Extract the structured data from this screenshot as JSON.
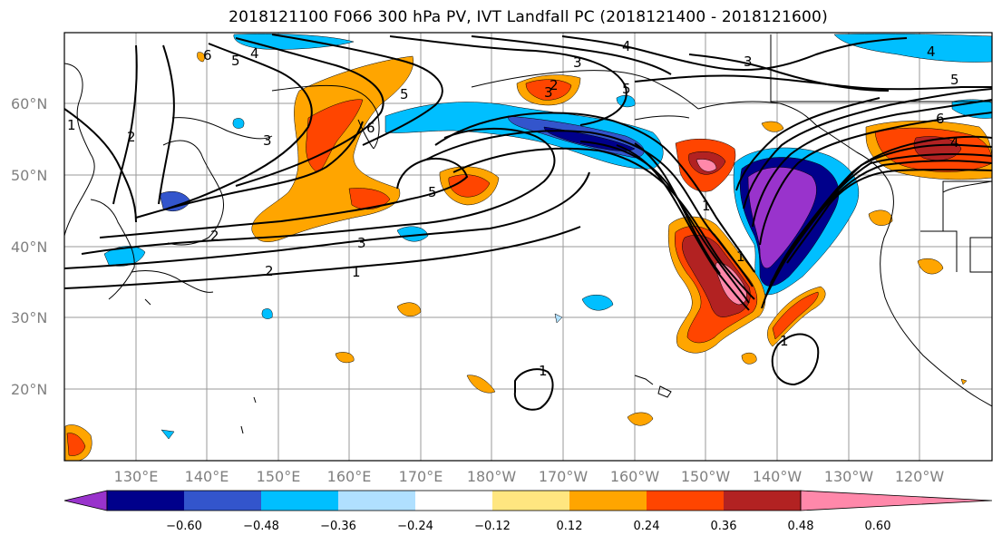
{
  "title": "2018121100 F066 300 hPa PV, IVT Landfall PC (2018121400 - 2018121600)",
  "map": {
    "lat_ticks": [
      "60°N",
      "50°N",
      "40°N",
      "30°N",
      "20°N"
    ],
    "lon_ticks": [
      "130°E",
      "140°E",
      "150°E",
      "160°E",
      "170°E",
      "180°W",
      "170°W",
      "160°W",
      "150°W",
      "140°W",
      "130°W",
      "120°W"
    ],
    "contour_labels": [
      "6",
      "5",
      "4",
      "3",
      "2",
      "1",
      "5",
      "3",
      "2",
      "1",
      "3",
      "4",
      "5",
      "2",
      "5",
      "3",
      "2",
      "1",
      "5",
      "6",
      "4",
      "1",
      "1",
      "1",
      "6",
      "4",
      "3"
    ]
  },
  "colorbar": {
    "tick_labels": [
      "−0.60",
      "−0.48",
      "−0.36",
      "−0.24",
      "−0.12",
      "0.12",
      "0.24",
      "0.36",
      "0.48",
      "0.60"
    ],
    "colors": [
      "#9933cc",
      "#00008b",
      "#3355cc",
      "#00bfff",
      "#b0e0ff",
      "#ffffff",
      "#ffe680",
      "#ffa500",
      "#ff4500",
      "#b22222",
      "#ff88aa"
    ]
  }
}
